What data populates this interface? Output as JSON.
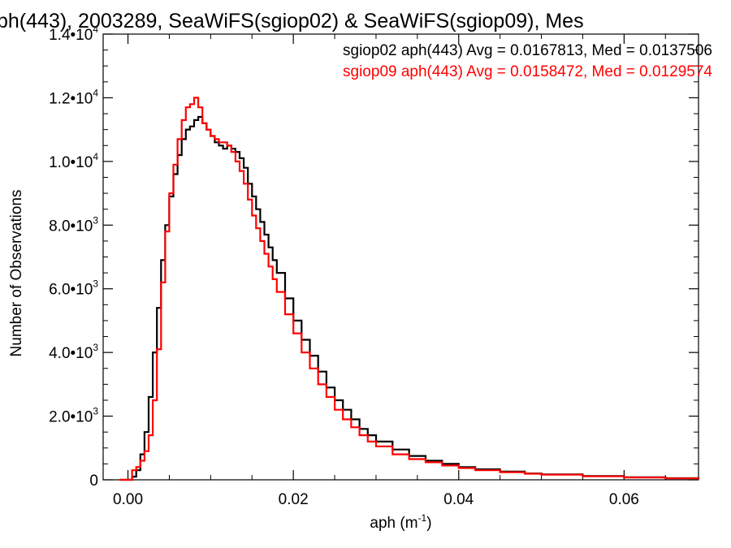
{
  "chart_data": {
    "type": "line",
    "title": "ph(443), 2003289, SeaWiFS(sgiop02) & SeaWiFS(sgiop09), Mes",
    "xlabel": "aph (m",
    "xlabel_sup": "-1",
    "xlabel_close": ")",
    "ylabel": "Number of Observations",
    "xlim": [
      -0.003,
      0.069
    ],
    "ylim": [
      0,
      14000
    ],
    "x_ticks": [
      {
        "value": 0.0,
        "label": "0.00"
      },
      {
        "value": 0.02,
        "label": "0.02"
      },
      {
        "value": 0.04,
        "label": "0.04"
      },
      {
        "value": 0.06,
        "label": "0.06"
      }
    ],
    "y_ticks": [
      {
        "value": 0,
        "base": "0",
        "exp": ""
      },
      {
        "value": 2000,
        "base": "2.0•10",
        "exp": "3"
      },
      {
        "value": 4000,
        "base": "4.0•10",
        "exp": "3"
      },
      {
        "value": 6000,
        "base": "6.0•10",
        "exp": "3"
      },
      {
        "value": 8000,
        "base": "8.0•10",
        "exp": "3"
      },
      {
        "value": 10000,
        "base": "1.0•10",
        "exp": "4"
      },
      {
        "value": 12000,
        "base": "1.2•10",
        "exp": "4"
      },
      {
        "value": 14000,
        "base": "1.4•10",
        "exp": "4"
      }
    ],
    "series": [
      {
        "name": "sgiop02 aph(443) Avg = 0.0167813, Med = 0.0137506",
        "color": "#000000",
        "x": [
          -0.001,
          0.0005,
          0.001,
          0.0015,
          0.002,
          0.0025,
          0.003,
          0.0035,
          0.004,
          0.0045,
          0.005,
          0.0055,
          0.006,
          0.0065,
          0.007,
          0.0075,
          0.008,
          0.0085,
          0.009,
          0.0095,
          0.01,
          0.0105,
          0.011,
          0.0115,
          0.012,
          0.0125,
          0.013,
          0.0135,
          0.014,
          0.0145,
          0.015,
          0.0155,
          0.016,
          0.0165,
          0.017,
          0.0175,
          0.018,
          0.019,
          0.02,
          0.021,
          0.022,
          0.023,
          0.024,
          0.025,
          0.026,
          0.027,
          0.028,
          0.029,
          0.03,
          0.032,
          0.034,
          0.036,
          0.038,
          0.04,
          0.042,
          0.045,
          0.048,
          0.05,
          0.055,
          0.06,
          0.065,
          0.069
        ],
        "y": [
          0,
          100,
          300,
          800,
          1500,
          2600,
          4000,
          5400,
          6900,
          8000,
          8900,
          9600,
          10200,
          10700,
          11000,
          11100,
          11300,
          11400,
          11200,
          11000,
          10800,
          10600,
          10500,
          10400,
          10500,
          10400,
          10300,
          10100,
          9800,
          9300,
          8900,
          8500,
          8100,
          7700,
          7300,
          6900,
          6500,
          5700,
          5000,
          4400,
          3900,
          3400,
          2900,
          2500,
          2200,
          1900,
          1600,
          1400,
          1200,
          950,
          750,
          600,
          500,
          400,
          330,
          260,
          200,
          170,
          120,
          80,
          50,
          30
        ]
      },
      {
        "name": "sgiop09 aph(443) Avg = 0.0158472, Med = 0.0129574",
        "color": "#ff0000",
        "x": [
          -0.001,
          0.0005,
          0.001,
          0.0015,
          0.002,
          0.0025,
          0.003,
          0.0035,
          0.004,
          0.0045,
          0.005,
          0.0055,
          0.006,
          0.0065,
          0.007,
          0.0075,
          0.008,
          0.0085,
          0.009,
          0.0095,
          0.01,
          0.0105,
          0.011,
          0.0115,
          0.012,
          0.0125,
          0.013,
          0.0135,
          0.014,
          0.0145,
          0.015,
          0.0155,
          0.016,
          0.0165,
          0.017,
          0.0175,
          0.018,
          0.019,
          0.02,
          0.021,
          0.022,
          0.023,
          0.024,
          0.025,
          0.026,
          0.027,
          0.028,
          0.029,
          0.03,
          0.032,
          0.034,
          0.036,
          0.038,
          0.04,
          0.042,
          0.045,
          0.048,
          0.05,
          0.055,
          0.06,
          0.065,
          0.069
        ],
        "y": [
          0,
          300,
          400,
          600,
          900,
          1400,
          2500,
          4100,
          6200,
          7800,
          9000,
          9900,
          10700,
          11300,
          11700,
          11800,
          12000,
          11700,
          11200,
          11000,
          10800,
          10700,
          10600,
          10600,
          10500,
          10300,
          10000,
          9700,
          9300,
          8800,
          8300,
          7900,
          7500,
          7100,
          6700,
          6300,
          5900,
          5200,
          4600,
          4000,
          3500,
          3000,
          2600,
          2200,
          1900,
          1650,
          1400,
          1200,
          1050,
          800,
          650,
          550,
          450,
          370,
          300,
          240,
          190,
          160,
          110,
          75,
          45,
          25
        ]
      }
    ],
    "grid": false,
    "legend": "top-right"
  }
}
